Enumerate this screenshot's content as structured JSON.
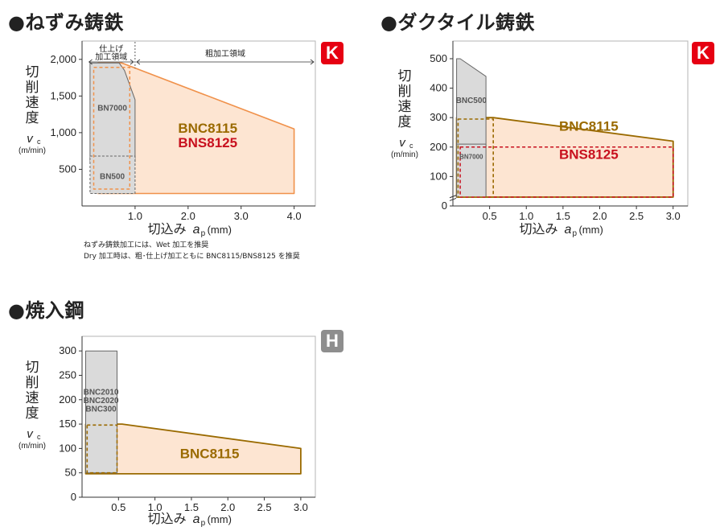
{
  "sections": [
    {
      "title": "●ねずみ鋳鉄",
      "badge": "K"
    },
    {
      "title": "●ダクタイル鋳鉄",
      "badge": "K"
    },
    {
      "title": "●焼入鋼",
      "badge": "H"
    }
  ],
  "notes": [
    "ねずみ鋳鉄加工には、Wet 加工を推奨",
    "Dry 加工時は、粗･仕上げ加工ともに BNC8115/BNS8125 を推奨"
  ],
  "colors": {
    "orange": "#f0914a",
    "orange_fill": "#fde5d2",
    "brown": "#9a6a00",
    "red_text": "#c8101e",
    "gray_fill": "#dadada",
    "gray_line": "#666666",
    "frame": "#b5b5b5",
    "badge_k": "#e60012",
    "badge_h": "#8e8e8e"
  },
  "chart_data": [
    {
      "type": "area",
      "title": "●ねずみ鋳鉄",
      "ylabel": [
        "切",
        "削",
        "速",
        "度"
      ],
      "ysymbol": "v",
      "ysub": "c",
      "yunit": "(m/min)",
      "xlabel": "切込み",
      "xsymbol": "a",
      "xsub": "p",
      "xunit": "(mm)",
      "xlim": [
        0,
        4.4
      ],
      "ylim": [
        0,
        2250
      ],
      "xticks": [
        1.0,
        2.0,
        3.0,
        4.0
      ],
      "xtick_labels": [
        "1.0",
        "2.0",
        "3.0",
        "4.0"
      ],
      "yticks": [
        500,
        1000,
        1500,
        2000
      ],
      "ytick_labels": [
        "500",
        "1,000",
        "1,500",
        "2,000"
      ],
      "zones": [
        {
          "label": [
            "仕上げ",
            "加工領域"
          ],
          "x": [
            0.1,
            1.0
          ]
        },
        {
          "label": [
            "粗加工領域"
          ],
          "x": [
            1.0,
            4.4
          ]
        }
      ],
      "regions": [
        {
          "name": "BNC8115 / BNS8125",
          "style": "orange-solid",
          "points": [
            [
              0.3,
              1950
            ],
            [
              0.75,
              1950
            ],
            [
              4.0,
              1050
            ],
            [
              4.0,
              170
            ],
            [
              0.3,
              170
            ]
          ]
        },
        {
          "name": "BN7000",
          "style": "gray-solid",
          "points": [
            [
              0.15,
              1950
            ],
            [
              0.7,
              1950
            ],
            [
              0.8,
              1850
            ],
            [
              1.0,
              1450
            ],
            [
              1.0,
              600
            ],
            [
              0.15,
              600
            ]
          ]
        },
        {
          "name": "BN500",
          "style": "gray-dashed",
          "points": [
            [
              0.15,
              680
            ],
            [
              1.0,
              680
            ],
            [
              1.0,
              170
            ],
            [
              0.15,
              170
            ]
          ]
        },
        {
          "name": "BN500-outline",
          "style": "orange-dashed",
          "points": [
            [
              0.22,
              1890
            ],
            [
              0.9,
              1890
            ],
            [
              0.9,
              230
            ],
            [
              0.22,
              230
            ]
          ]
        }
      ],
      "labels": [
        {
          "text": "BNC8115",
          "x": 2.37,
          "y": 1000,
          "style": "brown-big"
        },
        {
          "text": "BNS8125",
          "x": 2.37,
          "y": 800,
          "style": "red-big"
        },
        {
          "text": "BN7000",
          "x": 0.57,
          "y": 1300,
          "style": "gray-small"
        },
        {
          "text": "BN500",
          "x": 0.57,
          "y": 370,
          "style": "gray-small"
        }
      ]
    },
    {
      "type": "area",
      "title": "●ダクタイル鋳鉄",
      "ylabel": [
        "切",
        "削",
        "速",
        "度"
      ],
      "ysymbol": "v",
      "ysub": "c",
      "yunit": "(m/min)",
      "xlabel": "切込み",
      "xsymbol": "a",
      "xsub": "p",
      "xunit": "(mm)",
      "xlim": [
        0,
        3.2
      ],
      "ylim": [
        0,
        560
      ],
      "xticks": [
        0.5,
        1.0,
        1.5,
        2.0,
        2.5,
        3.0
      ],
      "xtick_labels": [
        "0.5",
        "1.0",
        "1.5",
        "2.0",
        "2.5",
        "3.0"
      ],
      "yticks": [
        0,
        100,
        200,
        300,
        400,
        500
      ],
      "ytick_labels": [
        "0",
        "100",
        "200",
        "300",
        "400",
        "500"
      ],
      "axis_break": true,
      "regions": [
        {
          "name": "BNC8115",
          "style": "brown-solid",
          "points": [
            [
              0.05,
              300
            ],
            [
              0.55,
              300
            ],
            [
              3.0,
              220
            ],
            [
              3.0,
              30
            ],
            [
              0.05,
              30
            ]
          ]
        },
        {
          "name": "BNC500",
          "style": "gray-solid",
          "points": [
            [
              0.05,
              500
            ],
            [
              0.1,
              500
            ],
            [
              0.45,
              440
            ],
            [
              0.45,
              200
            ],
            [
              0.05,
              200
            ]
          ]
        },
        {
          "name": "BN7000",
          "style": "gray-small-solid",
          "points": [
            [
              0.05,
              210
            ],
            [
              0.45,
              210
            ],
            [
              0.45,
              30
            ],
            [
              0.05,
              30
            ]
          ]
        },
        {
          "name": "BNS8125",
          "style": "red-dashed",
          "points": [
            [
              0.1,
              200
            ],
            [
              3.0,
              200
            ],
            [
              3.0,
              30
            ],
            [
              0.1,
              30
            ]
          ]
        },
        {
          "name": "BNC8115-outline",
          "style": "brown-dashed",
          "points": [
            [
              0.07,
              295
            ],
            [
              0.55,
              295
            ],
            [
              0.55,
              30
            ],
            [
              0.07,
              30
            ]
          ]
        }
      ],
      "labels": [
        {
          "text": "BNC8115",
          "x": 1.85,
          "y": 255,
          "style": "brown-big"
        },
        {
          "text": "BNS8125",
          "x": 1.85,
          "y": 160,
          "style": "red-big"
        },
        {
          "text": "BNC500",
          "x": 0.25,
          "y": 350,
          "style": "gray-small"
        },
        {
          "text": "BN7000",
          "x": 0.25,
          "y": 160,
          "style": "gray-tiny"
        }
      ]
    },
    {
      "type": "area",
      "title": "●焼入鋼",
      "ylabel": [
        "切",
        "削",
        "速",
        "度"
      ],
      "ysymbol": "v",
      "ysub": "c",
      "yunit": "(m/min)",
      "xlabel": "切込み",
      "xsymbol": "a",
      "xsub": "p",
      "xunit": "(mm)",
      "xlim": [
        0,
        3.2
      ],
      "ylim": [
        0,
        330
      ],
      "xticks": [
        0.5,
        1.0,
        1.5,
        2.0,
        2.5,
        3.0
      ],
      "xtick_labels": [
        "0.5",
        "1.0",
        "1.5",
        "2.0",
        "2.5",
        "3.0"
      ],
      "yticks": [
        0,
        50,
        100,
        150,
        200,
        250,
        300
      ],
      "ytick_labels": [
        "0",
        "50",
        "100",
        "150",
        "200",
        "250",
        "300"
      ],
      "regions": [
        {
          "name": "BNC8115",
          "style": "brown-solid",
          "points": [
            [
              0.05,
              150
            ],
            [
              0.55,
              150
            ],
            [
              3.0,
              100
            ],
            [
              3.0,
              48
            ],
            [
              0.05,
              48
            ]
          ]
        },
        {
          "name": "BNC2010 / BNC2020 / BNC300",
          "style": "gray-solid",
          "points": [
            [
              0.05,
              300
            ],
            [
              0.48,
              300
            ],
            [
              0.48,
              50
            ],
            [
              0.05,
              50
            ]
          ]
        },
        {
          "name": "BNC8115-outline",
          "style": "brown-dashed",
          "points": [
            [
              0.07,
              148
            ],
            [
              0.48,
              148
            ],
            [
              0.48,
              50
            ],
            [
              0.07,
              50
            ]
          ]
        }
      ],
      "labels": [
        {
          "text": "BNC8115",
          "x": 1.75,
          "y": 80,
          "style": "brown-big"
        },
        {
          "text": "BNC2010",
          "x": 0.26,
          "y": 210,
          "style": "gray-small"
        },
        {
          "text": "BNC2020",
          "x": 0.26,
          "y": 193,
          "style": "gray-small"
        },
        {
          "text": "BNC300",
          "x": 0.26,
          "y": 176,
          "style": "gray-small"
        }
      ]
    }
  ]
}
